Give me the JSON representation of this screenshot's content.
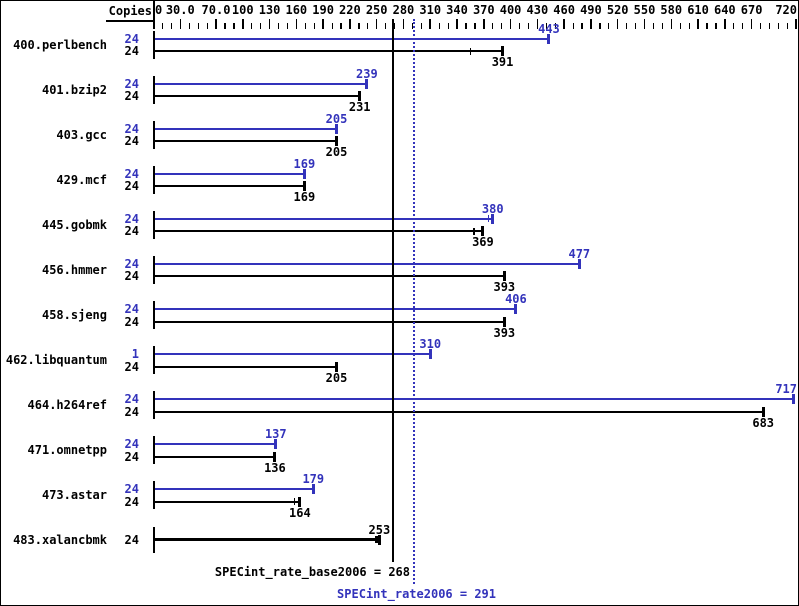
{
  "copies_header": "Copies",
  "colors": {
    "peak": "#3333bb",
    "base": "#000000",
    "background": "#ffffff"
  },
  "chart_data": {
    "type": "bar",
    "orientation": "horizontal",
    "title": "",
    "xlabel": "",
    "ylabel": "Copies",
    "xlim": [
      0,
      725
    ],
    "grid": false,
    "legend_position": "none",
    "axis_ticks": [
      {
        "label": "0",
        "value": 0
      },
      {
        "label": "30.0",
        "value": 30
      },
      {
        "label": "70.0",
        "value": 70
      },
      {
        "label": "100",
        "value": 100
      },
      {
        "label": "130",
        "value": 130
      },
      {
        "label": "160",
        "value": 160
      },
      {
        "label": "190",
        "value": 190
      },
      {
        "label": "220",
        "value": 220
      },
      {
        "label": "250",
        "value": 250
      },
      {
        "label": "280",
        "value": 280
      },
      {
        "label": "310",
        "value": 310
      },
      {
        "label": "340",
        "value": 340
      },
      {
        "label": "370",
        "value": 370
      },
      {
        "label": "400",
        "value": 400
      },
      {
        "label": "430",
        "value": 430
      },
      {
        "label": "460",
        "value": 460
      },
      {
        "label": "490",
        "value": 490
      },
      {
        "label": "520",
        "value": 520
      },
      {
        "label": "550",
        "value": 550
      },
      {
        "label": "580",
        "value": 580
      },
      {
        "label": "610",
        "value": 610
      },
      {
        "label": "640",
        "value": 640
      },
      {
        "label": "670",
        "value": 670
      },
      {
        "label": "720",
        "value": 720
      }
    ],
    "minor_tick_step": 10,
    "benchmarks": [
      {
        "name": "400.perlbench",
        "peak": {
          "copies": "24",
          "value": 443,
          "run_ticks": []
        },
        "base": {
          "copies": "24",
          "value": 391,
          "run_ticks": [
            355
          ]
        }
      },
      {
        "name": "401.bzip2",
        "peak": {
          "copies": "24",
          "value": 239,
          "run_ticks": []
        },
        "base": {
          "copies": "24",
          "value": 231,
          "run_ticks": []
        }
      },
      {
        "name": "403.gcc",
        "peak": {
          "copies": "24",
          "value": 205,
          "run_ticks": []
        },
        "base": {
          "copies": "24",
          "value": 205,
          "run_ticks": []
        }
      },
      {
        "name": "429.mcf",
        "peak": {
          "copies": "24",
          "value": 169,
          "run_ticks": []
        },
        "base": {
          "copies": "24",
          "value": 169,
          "run_ticks": []
        }
      },
      {
        "name": "445.gobmk",
        "peak": {
          "copies": "24",
          "value": 380,
          "run_ticks": [
            375
          ]
        },
        "base": {
          "copies": "24",
          "value": 369,
          "run_ticks": [
            359
          ]
        }
      },
      {
        "name": "456.hmmer",
        "peak": {
          "copies": "24",
          "value": 477,
          "run_ticks": []
        },
        "base": {
          "copies": "24",
          "value": 393,
          "run_ticks": []
        }
      },
      {
        "name": "458.sjeng",
        "peak": {
          "copies": "24",
          "value": 406,
          "run_ticks": []
        },
        "base": {
          "copies": "24",
          "value": 393,
          "run_ticks": []
        }
      },
      {
        "name": "462.libquantum",
        "peak": {
          "copies": "1",
          "value": 310,
          "run_ticks": []
        },
        "base": {
          "copies": "24",
          "value": 205,
          "run_ticks": []
        }
      },
      {
        "name": "464.h264ref",
        "peak": {
          "copies": "24",
          "value": 717,
          "run_ticks": []
        },
        "base": {
          "copies": "24",
          "value": 683,
          "run_ticks": []
        }
      },
      {
        "name": "471.omnetpp",
        "peak": {
          "copies": "24",
          "value": 137,
          "run_ticks": []
        },
        "base": {
          "copies": "24",
          "value": 136,
          "run_ticks": []
        }
      },
      {
        "name": "473.astar",
        "peak": {
          "copies": "24",
          "value": 179,
          "run_ticks": []
        },
        "base": {
          "copies": "24",
          "value": 164,
          "run_ticks": [
            158
          ]
        }
      },
      {
        "name": "483.xalancbmk",
        "merged": {
          "copies": "24",
          "value": 253,
          "run_ticks": [
            249,
            251
          ]
        }
      }
    ],
    "reference_lines": [
      {
        "name": "base",
        "label": "SPECint_rate_base2006 = 268",
        "value": 268,
        "style": "solid",
        "color": "#000000"
      },
      {
        "name": "peak",
        "label": "SPECint_rate2006 = 291",
        "value": 291,
        "style": "dotted",
        "color": "#3333bb"
      }
    ]
  }
}
